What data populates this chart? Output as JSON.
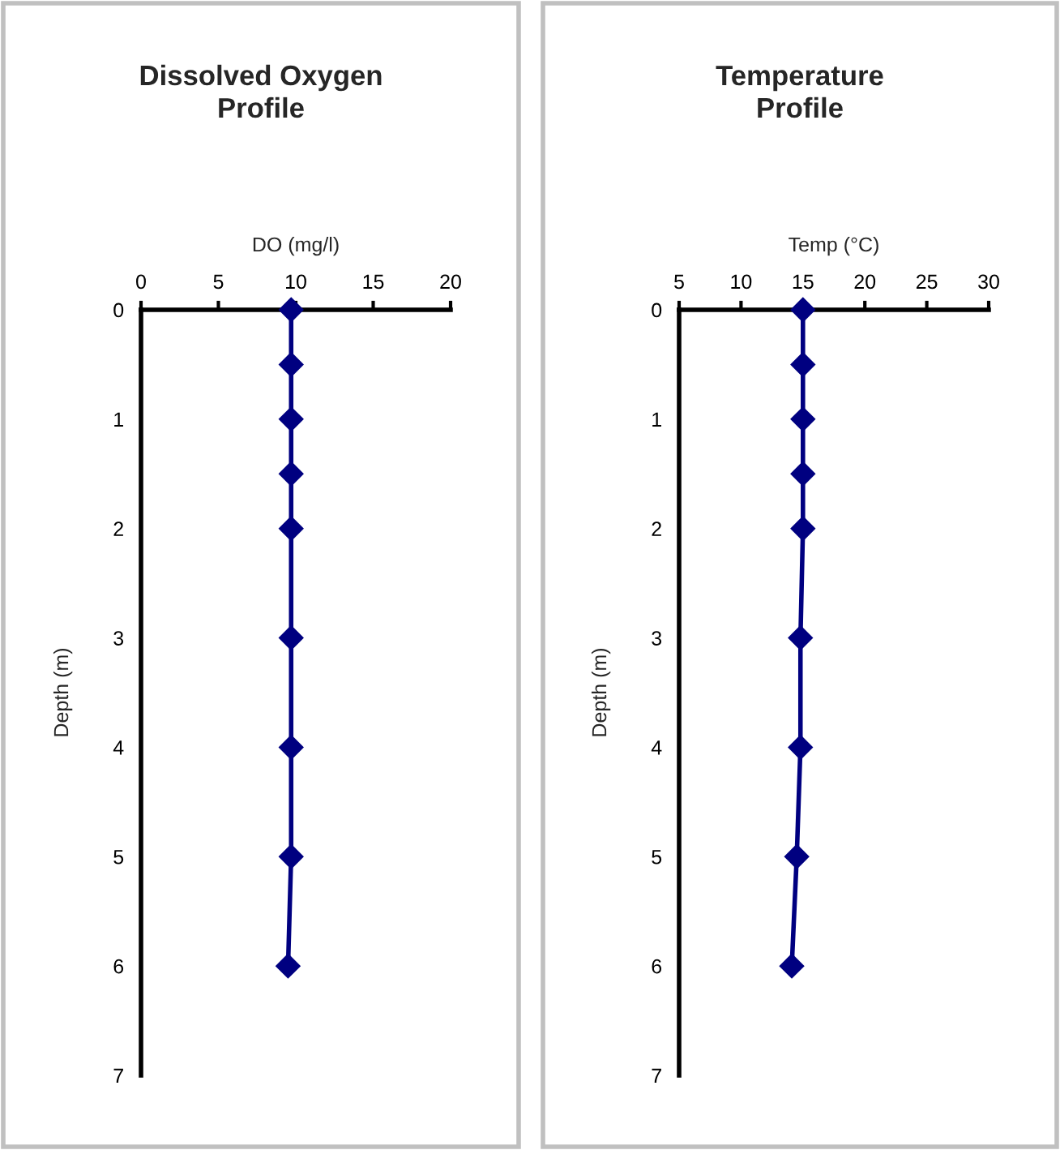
{
  "chart_data": [
    {
      "type": "line",
      "title": "Dissolved Oxygen\nProfile",
      "xlabel": "DO (mg/l)",
      "ylabel": "Depth (m)",
      "xlim": [
        0,
        20
      ],
      "xticks": [
        0,
        5,
        10,
        15,
        20
      ],
      "ylim": [
        7,
        0
      ],
      "yticks": [
        0,
        1,
        2,
        3,
        4,
        5,
        6,
        7
      ],
      "marker": "diamond",
      "line_style": "solid",
      "grid": false,
      "legend": false,
      "series": [
        {
          "color": "#000080",
          "x": [
            9.7,
            9.7,
            9.7,
            9.7,
            9.7,
            9.7,
            9.7,
            9.7,
            9.5
          ],
          "values": [
            0,
            0.5,
            1,
            1.5,
            2,
            3,
            4,
            5,
            6
          ]
        }
      ]
    },
    {
      "type": "line",
      "title": "Temperature\nProfile",
      "xlabel": "Temp (°C)",
      "ylabel": "Depth (m)",
      "xlim": [
        5,
        30
      ],
      "xticks": [
        5,
        10,
        15,
        20,
        25,
        30
      ],
      "ylim": [
        7,
        0
      ],
      "yticks": [
        0,
        1,
        2,
        3,
        4,
        5,
        6,
        7
      ],
      "marker": "diamond",
      "line_style": "solid",
      "grid": false,
      "legend": false,
      "series": [
        {
          "color": "#000080",
          "x": [
            15.0,
            15.0,
            15.0,
            15.0,
            15.0,
            14.8,
            14.8,
            14.5,
            14.1
          ],
          "values": [
            0,
            0.5,
            1,
            1.5,
            2,
            3,
            4,
            5,
            6
          ]
        }
      ]
    }
  ]
}
